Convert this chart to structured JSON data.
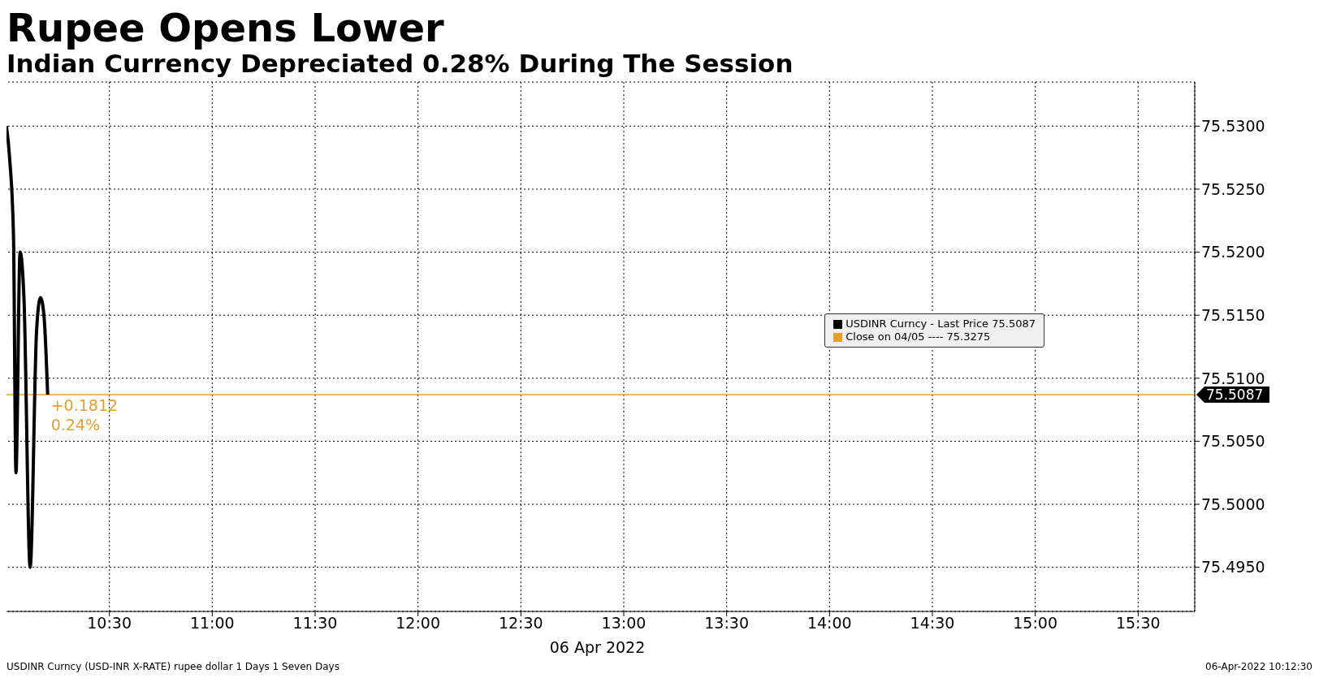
{
  "chart_data": {
    "type": "line",
    "title": "Rupee Opens Lower",
    "subtitle": "Indian Currency Depreciated 0.28% During The Session",
    "xlabel": "06 Apr 2022",
    "x": [
      10.0,
      10.015,
      10.034,
      10.046,
      10.066,
      10.085,
      10.115,
      10.146,
      10.165,
      10.182,
      10.2
    ],
    "series": [
      {
        "name": "USDINR Curncy - Last Price 75.5087",
        "color": "#000000",
        "values": [
          75.53,
          75.5275,
          75.5213,
          75.5025,
          75.52,
          75.5163,
          75.495,
          75.5137,
          75.5164,
          75.515,
          75.5087
        ]
      }
    ],
    "xlim": [
      10,
      15.775
    ],
    "xticks": [
      {
        "value": 10.5,
        "label": "10:30"
      },
      {
        "value": 11,
        "label": "11:00"
      },
      {
        "value": 11.5,
        "label": "11:30"
      },
      {
        "value": 12,
        "label": "12:00"
      },
      {
        "value": 12.5,
        "label": "12:30"
      },
      {
        "value": 13,
        "label": "13:00"
      },
      {
        "value": 13.5,
        "label": "13:30"
      },
      {
        "value": 14,
        "label": "14:00"
      },
      {
        "value": 14.5,
        "label": "14:30"
      },
      {
        "value": 15,
        "label": "15:00"
      },
      {
        "value": 15.5,
        "label": "15:30"
      }
    ],
    "ylim": [
      75.4915,
      75.5335
    ],
    "yticks": [
      {
        "value": 75.495,
        "label": "75.4950"
      },
      {
        "value": 75.5,
        "label": "75.5000"
      },
      {
        "value": 75.505,
        "label": "75.5050"
      },
      {
        "value": 75.51,
        "label": "75.5100"
      },
      {
        "value": 75.515,
        "label": "75.5150"
      },
      {
        "value": 75.52,
        "label": "75.5200"
      },
      {
        "value": 75.525,
        "label": "75.5250"
      },
      {
        "value": 75.53,
        "label": "75.5300"
      }
    ],
    "ref_lines": [
      {
        "axis": "y",
        "value": 75.5087,
        "label": "75.5087",
        "color": "#e8a02a"
      }
    ],
    "annotations": [
      {
        "text": "+0.1812",
        "x": 10.2,
        "y": 75.5087
      },
      {
        "text": "0.24%",
        "x": 10.2,
        "y": 75.5087
      },
      "Close on 04/05 ---- 75.3275",
      "USDINR Curncy (USD-INR X-RATE) rupee dollar 1 Days 1 Seven Days",
      "06-Apr-2022 10:12:30"
    ],
    "grid": true,
    "legend": "right",
    "marker": "none",
    "line_style": "solid"
  }
}
